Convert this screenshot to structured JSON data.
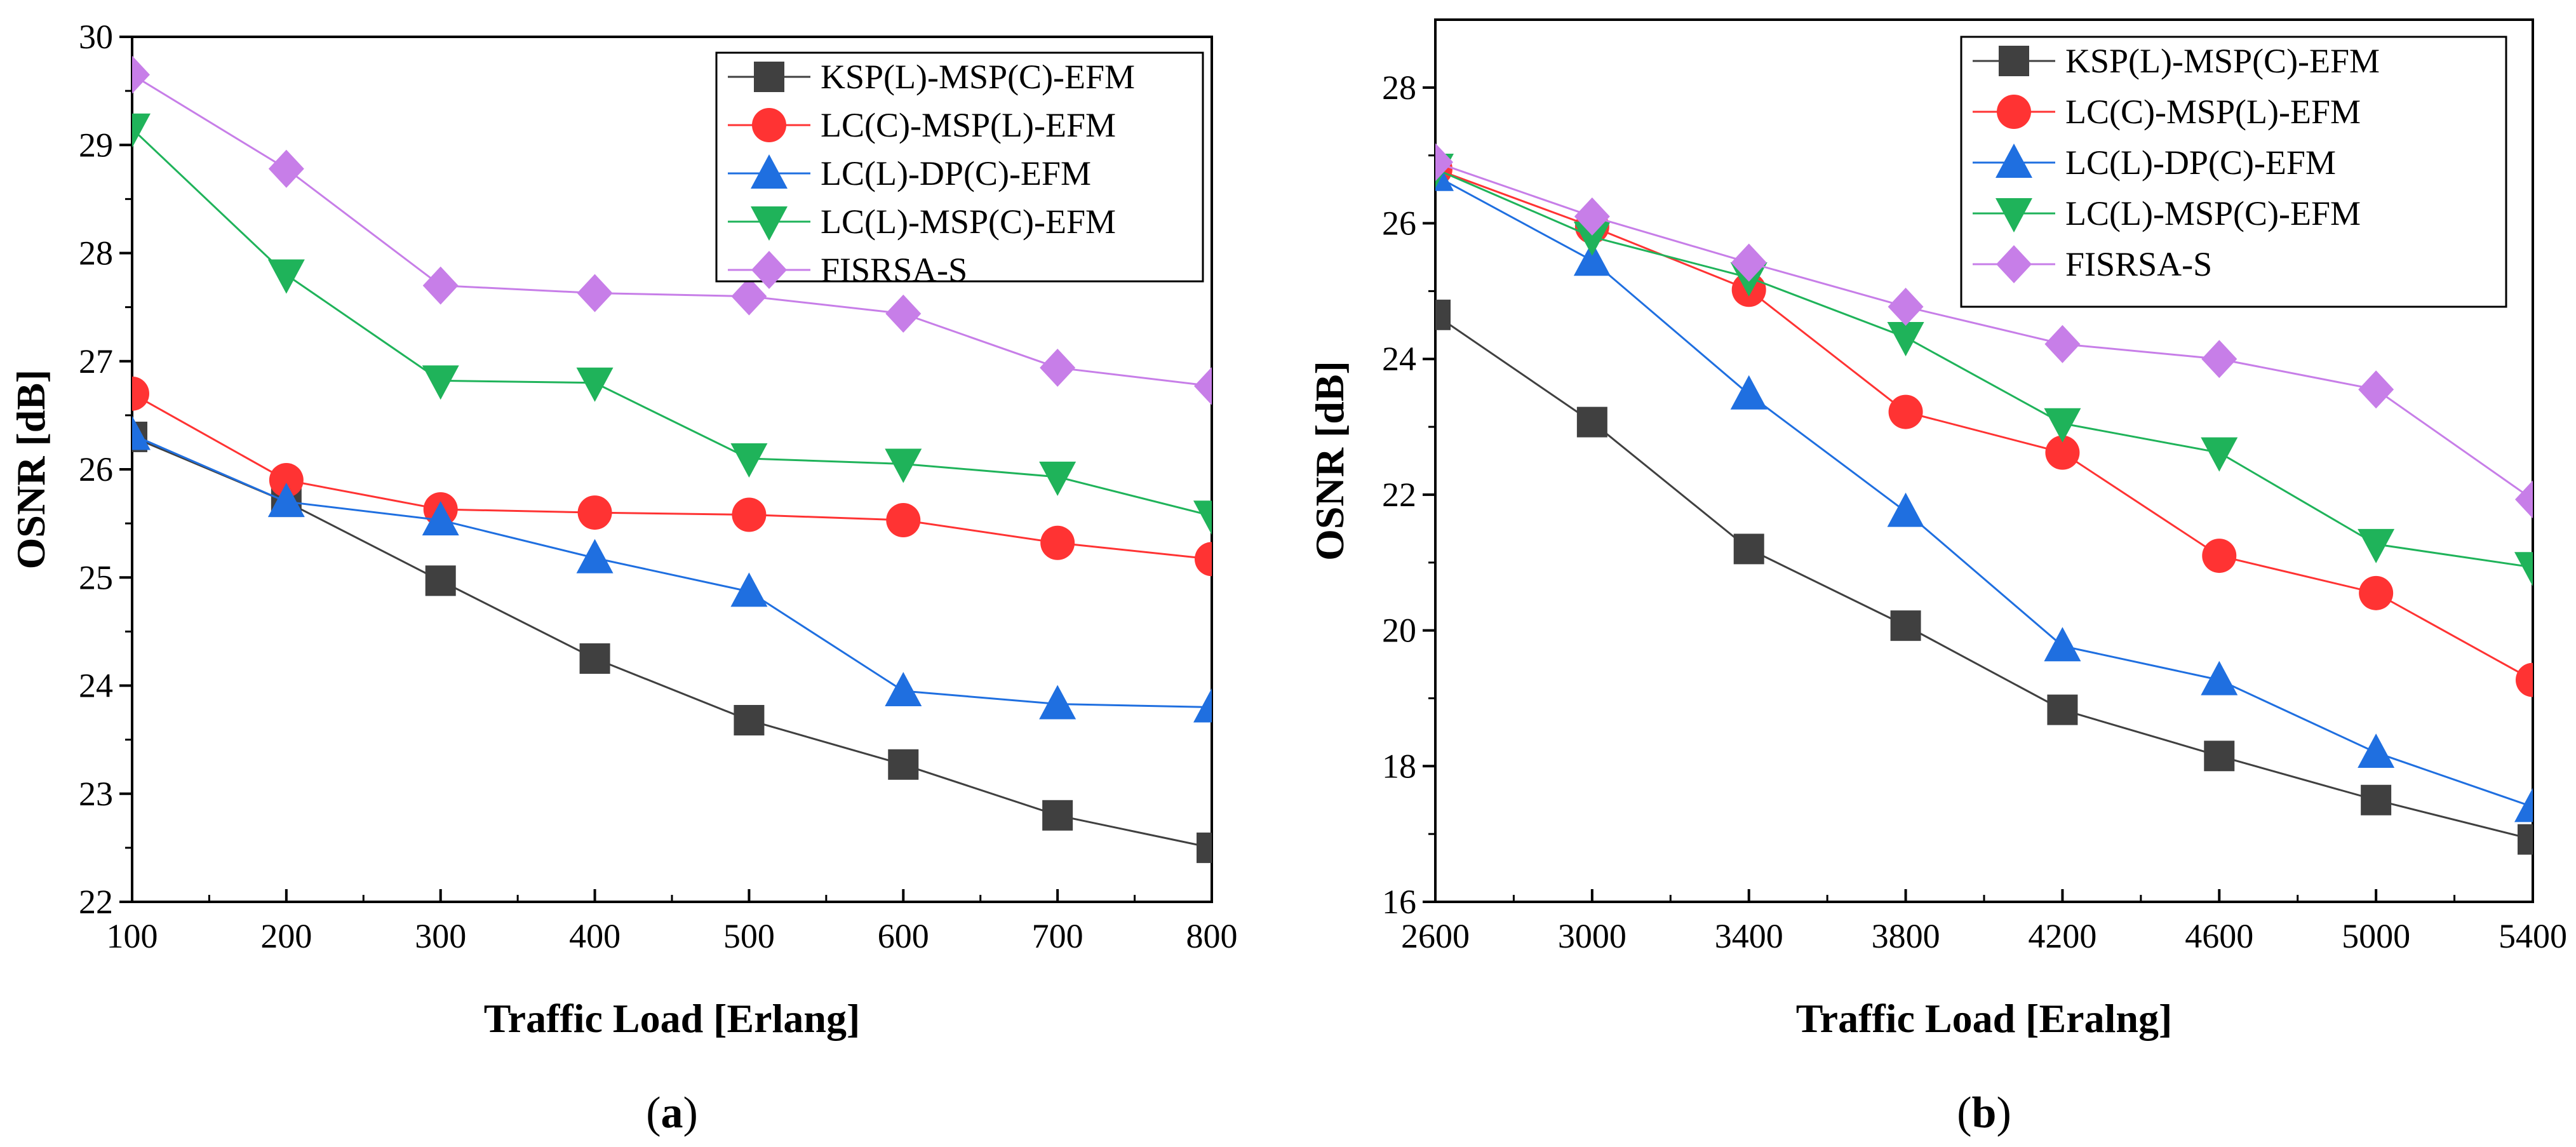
{
  "chart_data": [
    {
      "type": "line",
      "panel_label": "a",
      "xlabel": "Traffic Load [Erlang]",
      "ylabel": "OSNR [dB]",
      "xlim": [
        100,
        800
      ],
      "ylim": [
        22,
        30
      ],
      "x_ticks": [
        100,
        200,
        300,
        400,
        500,
        600,
        700,
        800
      ],
      "y_ticks": [
        22,
        23,
        24,
        25,
        26,
        27,
        28,
        29,
        30
      ],
      "legend_position": "top-right",
      "x": [
        100,
        200,
        300,
        400,
        500,
        600,
        700,
        800
      ],
      "series": [
        {
          "name": "KSP(L)-MSP(C)-EFM",
          "color": "#404040",
          "marker": "square",
          "values": [
            26.3,
            25.7,
            24.97,
            24.25,
            23.68,
            23.27,
            22.8,
            22.5
          ]
        },
        {
          "name": "LC(C)-MSP(L)-EFM",
          "color": "#ff3333",
          "marker": "circle",
          "values": [
            26.7,
            25.9,
            25.63,
            25.6,
            25.58,
            25.53,
            25.32,
            25.17
          ]
        },
        {
          "name": "LC(L)-DP(C)-EFM",
          "color": "#1f6fe0",
          "marker": "triangle-up",
          "values": [
            26.32,
            25.7,
            25.53,
            25.18,
            24.87,
            23.95,
            23.83,
            23.8
          ]
        },
        {
          "name": "LC(L)-MSP(C)-EFM",
          "color": "#1fb35a",
          "marker": "triangle-down",
          "values": [
            29.15,
            27.8,
            26.82,
            26.8,
            26.1,
            26.05,
            25.93,
            25.57
          ]
        },
        {
          "name": "FISRSA-S",
          "color": "#c77ee8",
          "marker": "diamond",
          "values": [
            29.65,
            28.78,
            27.7,
            27.63,
            27.6,
            27.44,
            26.94,
            26.77
          ]
        }
      ]
    },
    {
      "type": "line",
      "panel_label": "b",
      "xlabel": "Traffic Load [Eralng]",
      "ylabel": "OSNR [dB]",
      "xlim": [
        2600,
        5400
      ],
      "ylim": [
        16,
        29
      ],
      "x_ticks": [
        2600,
        3000,
        3400,
        3800,
        4200,
        4600,
        5000,
        5400
      ],
      "y_ticks": [
        16,
        18,
        20,
        22,
        24,
        26,
        28
      ],
      "legend_position": "top-right",
      "x": [
        2600,
        3000,
        3400,
        3800,
        4200,
        4600,
        5000,
        5400
      ],
      "series": [
        {
          "name": "KSP(L)-MSP(C)-EFM",
          "color": "#404040",
          "marker": "square",
          "values": [
            24.65,
            23.07,
            21.2,
            20.07,
            18.83,
            18.15,
            17.5,
            16.92
          ]
        },
        {
          "name": "LC(C)-MSP(L)-EFM",
          "color": "#ff3333",
          "marker": "circle",
          "values": [
            26.8,
            25.95,
            25.02,
            23.22,
            22.62,
            21.1,
            20.55,
            19.27
          ]
        },
        {
          "name": "LC(L)-DP(C)-EFM",
          "color": "#1f6fe0",
          "marker": "triangle-up",
          "values": [
            26.7,
            25.45,
            23.48,
            21.75,
            19.77,
            19.27,
            18.2,
            17.4
          ]
        },
        {
          "name": "LC(L)-MSP(C)-EFM",
          "color": "#1fb35a",
          "marker": "triangle-down",
          "values": [
            26.8,
            25.8,
            25.2,
            24.32,
            23.05,
            22.62,
            21.27,
            20.93
          ]
        },
        {
          "name": "FISRSA-S",
          "color": "#c77ee8",
          "marker": "diamond",
          "values": [
            26.9,
            26.1,
            25.42,
            24.77,
            24.22,
            24.0,
            23.55,
            21.93
          ]
        }
      ]
    }
  ]
}
